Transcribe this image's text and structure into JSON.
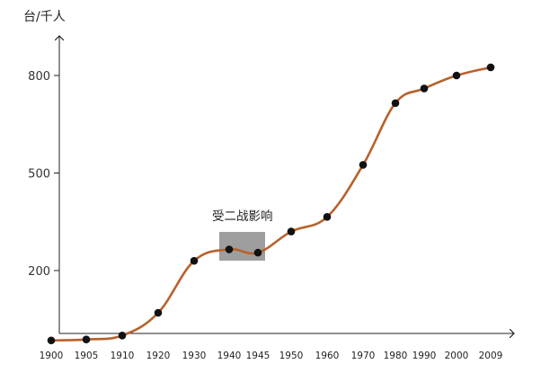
{
  "chart_data": {
    "type": "line",
    "unit_label": "台/千人",
    "xlabel": "",
    "ylabel": "",
    "categories": [
      "1900",
      "1905",
      "1910",
      "1920",
      "1930",
      "1940",
      "1945",
      "1950",
      "1960",
      "1970",
      "1980",
      "1990",
      "2000",
      "2009"
    ],
    "points": [
      {
        "x": 1900,
        "y": -15
      },
      {
        "x": 1905,
        "y": -12
      },
      {
        "x": 1910,
        "y": 0
      },
      {
        "x": 1920,
        "y": 70
      },
      {
        "x": 1930,
        "y": 230
      },
      {
        "x": 1940,
        "y": 265
      },
      {
        "x": 1945,
        "y": 255
      },
      {
        "x": 1950,
        "y": 320
      },
      {
        "x": 1960,
        "y": 365
      },
      {
        "x": 1970,
        "y": 525
      },
      {
        "x": 1980,
        "y": 715
      },
      {
        "x": 1990,
        "y": 760
      },
      {
        "x": 2000,
        "y": 800
      },
      {
        "x": 2009,
        "y": 825
      }
    ],
    "yticks": [
      200,
      500,
      800
    ],
    "ylim": [
      -30,
      960
    ],
    "annotation": {
      "text": "受二战影响",
      "x_range": [
        1940,
        1945
      ]
    },
    "colors": {
      "line": "#b8612b",
      "point": "#111111",
      "annotation_box": "#9e9e9e",
      "axis": "#222222"
    },
    "grid": false,
    "legend": "none"
  }
}
